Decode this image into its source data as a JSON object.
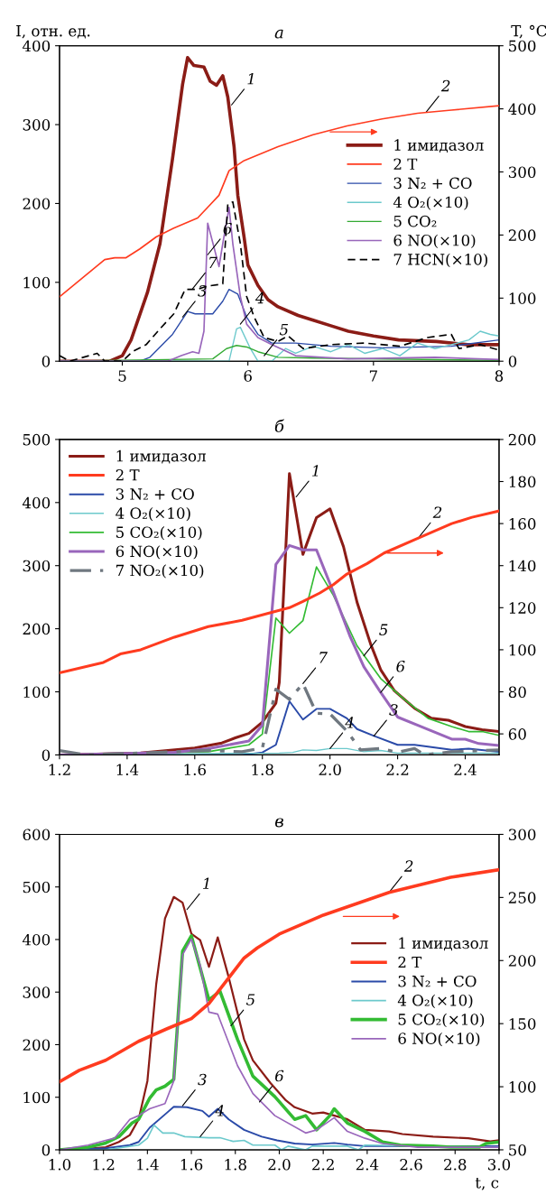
{
  "chart_data": [
    {
      "type": "line",
      "title": "а",
      "ylabel": "I, отн. ед.",
      "y2label": "T, °C",
      "xlim": [
        4.5,
        8
      ],
      "xticks": [
        5,
        6,
        7,
        8
      ],
      "ylim": [
        0,
        400
      ],
      "yticks": [
        0,
        100,
        200,
        300,
        400
      ],
      "y2lim": [
        0,
        500
      ],
      "y2ticks": [
        0,
        100,
        200,
        300,
        400,
        500
      ],
      "legend": "center right",
      "series": [
        {
          "name": "1 имидазол",
          "color": "#8b1c16",
          "x": [
            4.5,
            4.9,
            5.0,
            5.07,
            5.2,
            5.3,
            5.4,
            5.48,
            5.52,
            5.57,
            5.65,
            5.7,
            5.75,
            5.8,
            5.84,
            5.89,
            5.92,
            5.97,
            6.0,
            6.08,
            6.16,
            6.24,
            6.4,
            6.52,
            6.66,
            6.8,
            7.0,
            7.2,
            7.5,
            7.75,
            8.0
          ],
          "values": [
            0,
            0,
            7,
            27,
            87,
            149,
            257,
            351,
            385,
            375,
            373,
            355,
            350,
            362,
            335,
            272,
            210,
            157,
            122,
            96,
            78,
            69,
            58,
            52,
            45,
            38,
            32,
            27,
            25,
            21,
            21
          ]
        },
        {
          "name": "2 T",
          "color": "#ff3b1f",
          "axis": "y2",
          "x": [
            4.5,
            4.86,
            4.94,
            5.03,
            5.14,
            5.27,
            5.41,
            5.6,
            5.69,
            5.77,
            5.85,
            5.97,
            6.24,
            6.52,
            6.79,
            7.07,
            7.35,
            7.62,
            8.0
          ],
          "values": [
            102,
            161,
            164,
            164,
            178,
            197,
            211,
            227,
            246,
            263,
            302,
            318,
            340,
            359,
            373,
            384,
            393,
            398,
            405
          ]
        },
        {
          "name": "3 N₂ + CO",
          "color": "#2a4aa8",
          "x": [
            4.5,
            5.14,
            5.22,
            5.4,
            5.52,
            5.58,
            5.72,
            5.8,
            5.85,
            5.92,
            5.99,
            6.08,
            6.19,
            6.38,
            6.66,
            7.07,
            7.62,
            8.0
          ],
          "values": [
            0,
            0,
            5,
            34,
            63,
            60,
            60,
            76,
            91,
            85,
            56,
            34,
            23,
            23,
            19,
            17,
            19,
            27
          ]
        },
        {
          "name": "4 O₂(×10)",
          "color": "#6cc9cc",
          "x": [
            4.5,
            5.85,
            5.91,
            5.94,
            6.02,
            6.08,
            6.19,
            6.3,
            6.38,
            6.52,
            6.66,
            6.8,
            6.93,
            7.07,
            7.21,
            7.35,
            7.49,
            7.62,
            7.76,
            7.85,
            7.93,
            8.0
          ],
          "values": [
            0,
            0,
            41,
            43,
            16,
            0,
            0,
            16,
            10,
            19,
            12,
            21,
            10,
            16,
            7,
            23,
            16,
            21,
            27,
            38,
            34,
            32
          ]
        },
        {
          "name": "5 CO₂",
          "color": "#33aa33",
          "x": [
            4.5,
            5.72,
            5.83,
            5.91,
            5.99,
            6.08,
            6.24,
            6.52,
            8.0
          ],
          "values": [
            0,
            3,
            16,
            20,
            18,
            12,
            5,
            4,
            1
          ]
        },
        {
          "name": "6 NO(×10)",
          "color": "#9966bb",
          "x": [
            4.5,
            5.36,
            5.47,
            5.56,
            5.61,
            5.65,
            5.68,
            5.77,
            5.8,
            5.85,
            5.88,
            5.94,
            5.99,
            6.08,
            6.19,
            6.38,
            6.8,
            7.49,
            8.0
          ],
          "values": [
            0,
            0,
            7,
            12,
            10,
            38,
            175,
            120,
            149,
            195,
            149,
            82,
            47,
            30,
            21,
            7,
            3,
            5,
            2
          ]
        },
        {
          "name": "7 HCN(×10)",
          "color": "#000000",
          "line_style": "dashed",
          "x": [
            4.5,
            4.58,
            4.69,
            4.8,
            4.86,
            5.0,
            5.08,
            5.19,
            5.3,
            5.41,
            5.5,
            5.6,
            5.67,
            5.8,
            5.84,
            5.88,
            5.94,
            5.99,
            6.05,
            6.13,
            6.24,
            6.32,
            6.44,
            6.66,
            6.93,
            7.21,
            7.43,
            7.62,
            7.68,
            7.85,
            8.0
          ],
          "values": [
            7,
            0,
            5,
            10,
            0,
            0,
            12,
            21,
            41,
            60,
            91,
            91,
            95,
            98,
            199,
            202,
            149,
            82,
            56,
            30,
            25,
            32,
            16,
            21,
            23,
            19,
            30,
            34,
            16,
            21,
            14
          ]
        }
      ],
      "annotations": [
        {
          "text": "1",
          "x": 5.87,
          "y": 325
        },
        {
          "text": "2",
          "x": 7.42,
          "y": 316
        },
        {
          "text": "3",
          "x": 5.48,
          "y": 56
        },
        {
          "text": "4",
          "x": 5.94,
          "y": 47
        },
        {
          "text": "5",
          "x": 6.13,
          "y": 7
        },
        {
          "text": "6",
          "x": 5.68,
          "y": 135
        },
        {
          "text": "7",
          "x": 5.56,
          "y": 92
        }
      ]
    },
    {
      "type": "line",
      "title": "б",
      "xlim": [
        1.2,
        2.5
      ],
      "xticks": [
        1.2,
        1.4,
        1.6,
        1.8,
        {
          "value": 2,
          "label": "2.0"
        },
        2.2,
        2.4
      ],
      "ylim": [
        0,
        500
      ],
      "yticks": [
        0,
        100,
        200,
        300,
        400,
        500
      ],
      "y2lim": [
        50,
        200
      ],
      "y2ticks": [
        60,
        80,
        100,
        120,
        140,
        160,
        180,
        200
      ],
      "legend": "upper left",
      "series": [
        {
          "name": "1 имидазол",
          "color": "#8b1c16",
          "x": [
            1.2,
            1.44,
            1.6,
            1.68,
            1.72,
            1.76,
            1.8,
            1.84,
            1.85,
            1.88,
            1.92,
            1.96,
            2.0,
            2.04,
            2.08,
            2.12,
            2.15,
            2.19,
            2.25,
            2.3,
            2.35,
            2.4,
            2.45,
            2.5
          ],
          "values": [
            0,
            3,
            11,
            19,
            27,
            34,
            52,
            82,
            115,
            446,
            318,
            376,
            390,
            330,
            242,
            176,
            135,
            102,
            74,
            58,
            55,
            45,
            40,
            37
          ]
        },
        {
          "name": "2 T",
          "color": "#ff3b1f",
          "axis": "y2",
          "x": [
            1.2,
            1.33,
            1.38,
            1.44,
            1.54,
            1.64,
            1.74,
            1.81,
            1.88,
            1.92,
            1.97,
            2.01,
            2.05,
            2.11,
            2.16,
            2.26,
            2.36,
            2.42,
            2.5
          ],
          "values": [
            89,
            94,
            98,
            100,
            106,
            111,
            114,
            117,
            120,
            123,
            127,
            131,
            136,
            141,
            146,
            153,
            160,
            163,
            166
          ]
        },
        {
          "name": "3 N₂ + CO",
          "color": "#2a4aa8",
          "x": [
            1.2,
            1.74,
            1.8,
            1.84,
            1.88,
            1.92,
            1.96,
            2.0,
            2.05,
            2.08,
            2.13,
            2.2,
            2.25,
            2.36,
            2.41,
            2.5
          ],
          "values": [
            0,
            0,
            4,
            16,
            85,
            56,
            73,
            73,
            58,
            41,
            30,
            16,
            16,
            8,
            10,
            5
          ]
        },
        {
          "name": "4 O₂(×10)",
          "color": "#6cc9cc",
          "x": [
            1.2,
            1.85,
            1.89,
            1.92,
            1.96,
            2.0,
            2.05,
            2.1,
            2.15,
            2.2,
            2.5
          ],
          "values": [
            0,
            3,
            4,
            8,
            7,
            10,
            10,
            5,
            7,
            3,
            3
          ]
        },
        {
          "name": "5 CO₂(×10)",
          "color": "#33bb33",
          "x": [
            1.2,
            1.64,
            1.76,
            1.8,
            1.84,
            1.88,
            1.92,
            1.96,
            2.01,
            2.08,
            2.15,
            2.22,
            2.29,
            2.36,
            2.41,
            2.45,
            2.5
          ],
          "values": [
            0,
            5,
            16,
            33,
            217,
            193,
            213,
            298,
            253,
            173,
            121,
            88,
            58,
            45,
            37,
            37,
            31
          ]
        },
        {
          "name": "6 NO(×10)",
          "color": "#9966bb",
          "x": [
            1.2,
            1.54,
            1.64,
            1.76,
            1.8,
            1.84,
            1.88,
            1.92,
            1.96,
            2.01,
            2.06,
            2.1,
            2.15,
            2.2,
            2.26,
            2.36,
            2.4,
            2.44,
            2.5
          ],
          "values": [
            0,
            4,
            10,
            22,
            47,
            302,
            332,
            325,
            325,
            258,
            187,
            140,
            99,
            60,
            47,
            25,
            25,
            18,
            15
          ]
        },
        {
          "name": "7 NO₂(×10)",
          "color": "#707880",
          "line_style": "dashdot",
          "x": [
            1.2,
            1.28,
            1.44,
            1.64,
            1.74,
            1.8,
            1.84,
            1.88,
            1.92,
            1.96,
            2.0,
            2.05,
            2.09,
            2.15,
            2.2,
            2.25,
            2.28,
            2.36,
            2.5
          ],
          "values": [
            7,
            0,
            3,
            7,
            5,
            11,
            104,
            88,
            113,
            66,
            65,
            38,
            8,
            10,
            4,
            10,
            0,
            5,
            8
          ]
        }
      ],
      "annotations": [
        {
          "text": "1",
          "x": 1.9,
          "y": 409
        },
        {
          "text": "2",
          "x": 2.26,
          "y": 343
        },
        {
          "text": "3",
          "x": 2.13,
          "y": 30
        },
        {
          "text": "4",
          "x": 2.0,
          "y": 10
        },
        {
          "text": "5",
          "x": 2.1,
          "y": 157
        },
        {
          "text": "6",
          "x": 2.15,
          "y": 99
        },
        {
          "text": "7",
          "x": 1.92,
          "y": 113
        }
      ]
    },
    {
      "type": "line",
      "title": "в",
      "xlabel": "t, c",
      "xlim": [
        1.0,
        3.0
      ],
      "xticks": [
        {
          "value": 1,
          "label": "1.0"
        },
        1.2,
        1.4,
        1.6,
        1.8,
        {
          "value": 2,
          "label": "2.0"
        },
        2.2,
        2.4,
        2.6,
        2.8,
        {
          "value": 3,
          "label": "3.0"
        }
      ],
      "ylim": [
        0,
        600
      ],
      "yticks": [
        0,
        100,
        200,
        300,
        400,
        500,
        600
      ],
      "y2lim": [
        50,
        300
      ],
      "y2ticks": [
        50,
        100,
        150,
        200,
        250,
        300
      ],
      "legend": "center right",
      "series": [
        {
          "name": "1 имидазол",
          "color": "#8b1c16",
          "x": [
            1.0,
            1.13,
            1.21,
            1.27,
            1.32,
            1.36,
            1.4,
            1.44,
            1.48,
            1.52,
            1.56,
            1.6,
            1.64,
            1.68,
            1.72,
            1.77,
            1.84,
            1.88,
            1.96,
            2.03,
            2.07,
            2.15,
            2.2,
            2.31,
            2.39,
            2.5,
            2.56,
            2.7,
            2.86,
            2.96,
            3.0
          ],
          "values": [
            0,
            2,
            5,
            15,
            28,
            58,
            131,
            315,
            440,
            481,
            470,
            411,
            399,
            348,
            404,
            328,
            210,
            170,
            127,
            94,
            81,
            69,
            71,
            58,
            38,
            35,
            30,
            25,
            22,
            16,
            18
          ]
        },
        {
          "name": "2 T",
          "color": "#ff3b1f",
          "axis": "y2",
          "x": [
            1.0,
            1.09,
            1.21,
            1.36,
            1.49,
            1.6,
            1.68,
            1.76,
            1.84,
            1.9,
            2.0,
            2.2,
            2.5,
            2.78,
            3.0
          ],
          "values": [
            104,
            113,
            121,
            136,
            146,
            154,
            166,
            184,
            202,
            210,
            221,
            236,
            254,
            266,
            272
          ]
        },
        {
          "name": "3 N₂ + CO",
          "color": "#2a4aa8",
          "x": [
            1.0,
            1.21,
            1.32,
            1.36,
            1.41,
            1.49,
            1.52,
            1.58,
            1.65,
            1.68,
            1.72,
            1.77,
            1.84,
            1.92,
            1.99,
            2.07,
            2.15,
            2.25,
            2.31,
            2.39,
            2.63,
            3.0
          ],
          "values": [
            0,
            3,
            9,
            15,
            42,
            71,
            82,
            81,
            74,
            63,
            78,
            58,
            38,
            25,
            18,
            12,
            10,
            13,
            10,
            7,
            7,
            7
          ]
        },
        {
          "name": "4 O₂(×10)",
          "color": "#6cc9cc",
          "x": [
            1.0,
            1.21,
            1.36,
            1.4,
            1.43,
            1.47,
            1.52,
            1.57,
            1.68,
            1.73,
            1.79,
            1.84,
            1.88,
            1.98,
            2.01,
            2.04,
            2.12,
            2.15,
            2.31,
            2.36,
            2.39,
            3.0
          ],
          "values": [
            0,
            0,
            9,
            22,
            47,
            32,
            32,
            25,
            23,
            23,
            16,
            18,
            9,
            9,
            0,
            7,
            0,
            7,
            7,
            0,
            9,
            5
          ]
        },
        {
          "name": "5 CO₂(×10)",
          "color": "#33bb33",
          "x": [
            1.0,
            1.13,
            1.21,
            1.27,
            1.33,
            1.36,
            1.41,
            1.44,
            1.48,
            1.52,
            1.56,
            1.6,
            1.68,
            1.73,
            1.81,
            1.88,
            1.98,
            2.07,
            2.12,
            2.17,
            2.23,
            2.25,
            2.31,
            2.39,
            2.47,
            2.55,
            2.7,
            2.78,
            2.91,
            2.94,
            3.0
          ],
          "values": [
            0,
            5,
            13,
            25,
            51,
            58,
            98,
            114,
            121,
            134,
            378,
            407,
            285,
            302,
            210,
            140,
            101,
            58,
            65,
            38,
            65,
            78,
            51,
            35,
            15,
            9,
            7,
            5,
            5,
            12,
            15
          ]
        },
        {
          "name": "6 NO(×10)",
          "color": "#9966bb",
          "x": [
            1.0,
            1.13,
            1.21,
            1.25,
            1.32,
            1.36,
            1.41,
            1.48,
            1.52,
            1.56,
            1.6,
            1.64,
            1.68,
            1.72,
            1.81,
            1.88,
            1.98,
            2.12,
            2.17,
            2.25,
            2.31,
            2.39,
            2.47,
            2.63,
            3.0
          ],
          "values": [
            0,
            9,
            18,
            22,
            58,
            65,
            78,
            88,
            131,
            371,
            401,
            351,
            262,
            258,
            160,
            107,
            65,
            32,
            38,
            61,
            35,
            22,
            12,
            5,
            5
          ]
        }
      ],
      "annotations": [
        {
          "text": "1",
          "x": 1.58,
          "y": 457
        },
        {
          "text": "2",
          "x": 2.5,
          "y": 490
        },
        {
          "text": "3",
          "x": 1.56,
          "y": 84
        },
        {
          "text": "4",
          "x": 1.64,
          "y": 25
        },
        {
          "text": "5",
          "x": 1.78,
          "y": 236
        },
        {
          "text": "6",
          "x": 1.91,
          "y": 91
        }
      ]
    }
  ]
}
